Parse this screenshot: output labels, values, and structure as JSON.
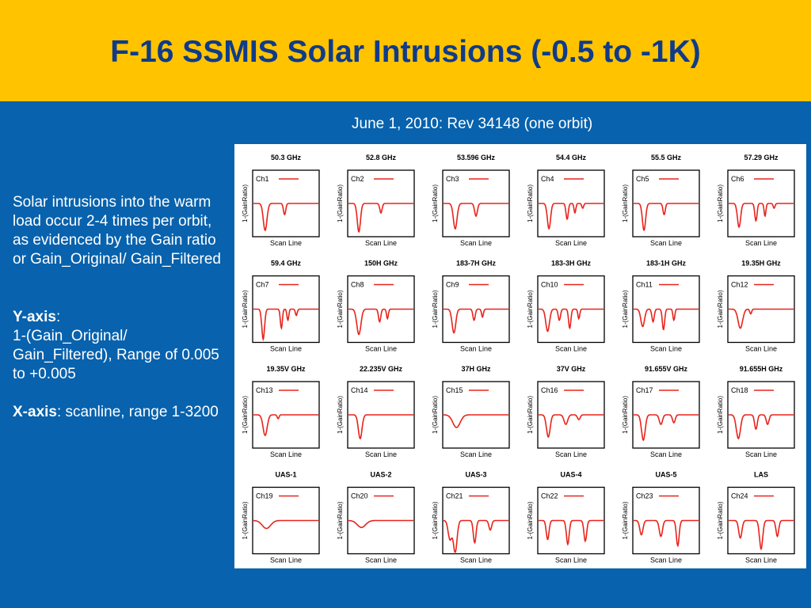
{
  "slide": {
    "title": "F-16 SSMIS Solar Intrusions (-0.5 to -1K)",
    "subtitle": "June 1, 2010: Rev 34148 (one orbit)",
    "description": "Solar intrusions into the warm load occur 2-4 times per orbit, as evidenced by the Gain ratio or Gain_Original/ Gain_Filtered",
    "y_axis": {
      "label": "Y-axis",
      "separator": ":",
      "text": "1-(Gain_Original/ Gain_Filtered), Range of 0.005 to +0.005"
    },
    "x_axis": {
      "label": "X-axis",
      "separator": ":",
      "text": "  scanline, range 1-3200"
    }
  },
  "colors": {
    "header_bg": "#ffc300",
    "title": "#0f3b8a",
    "slide_bg": "#0862ad",
    "series_line": "#e8241c"
  },
  "chart_data": {
    "type": "line",
    "xlabel": "Scan Line",
    "ylabel": "1-(GainRatio)",
    "xlim": [
      1,
      3200
    ],
    "ylim": [
      -0.005,
      0.005
    ],
    "panels": [
      {
        "title": "50.3 GHz",
        "legend": "Ch1",
        "dips": [
          [
            0.18,
            0.85,
            0.04
          ],
          [
            0.48,
            0.35,
            0.025
          ]
        ]
      },
      {
        "title": "52.8 GHz",
        "legend": "Ch2",
        "dips": [
          [
            0.16,
            0.9,
            0.035
          ],
          [
            0.5,
            0.3,
            0.025
          ]
        ]
      },
      {
        "title": "53.596 GHz",
        "legend": "Ch3",
        "dips": [
          [
            0.18,
            0.8,
            0.04
          ],
          [
            0.5,
            0.4,
            0.03
          ]
        ]
      },
      {
        "title": "54.4 GHz",
        "legend": "Ch4",
        "dips": [
          [
            0.16,
            0.8,
            0.035
          ],
          [
            0.44,
            0.5,
            0.025
          ],
          [
            0.56,
            0.3,
            0.02
          ],
          [
            0.68,
            0.15,
            0.02
          ]
        ]
      },
      {
        "title": "55.5 GHz",
        "legend": "Ch5",
        "dips": [
          [
            0.16,
            0.85,
            0.035
          ],
          [
            0.47,
            0.35,
            0.025
          ]
        ]
      },
      {
        "title": "57.29 GHz",
        "legend": "Ch6",
        "dips": [
          [
            0.16,
            0.75,
            0.035
          ],
          [
            0.42,
            0.55,
            0.025
          ],
          [
            0.56,
            0.4,
            0.02
          ],
          [
            0.7,
            0.15,
            0.02
          ]
        ]
      },
      {
        "title": "59.4 GHz",
        "legend": "Ch7",
        "dips": [
          [
            0.15,
            0.95,
            0.03
          ],
          [
            0.43,
            0.6,
            0.022
          ],
          [
            0.53,
            0.35,
            0.02
          ],
          [
            0.66,
            0.2,
            0.02
          ]
        ]
      },
      {
        "title": "150H GHz",
        "legend": "Ch8",
        "dips": [
          [
            0.16,
            0.8,
            0.045
          ],
          [
            0.48,
            0.4,
            0.025
          ],
          [
            0.6,
            0.3,
            0.02
          ]
        ]
      },
      {
        "title": "183-7H GHz",
        "legend": "Ch9",
        "dips": [
          [
            0.16,
            0.75,
            0.04
          ],
          [
            0.47,
            0.35,
            0.025
          ],
          [
            0.6,
            0.25,
            0.02
          ]
        ]
      },
      {
        "title": "183-3H GHz",
        "legend": "Ch10",
        "dips": [
          [
            0.14,
            0.7,
            0.04
          ],
          [
            0.32,
            0.35,
            0.025
          ],
          [
            0.48,
            0.6,
            0.025
          ],
          [
            0.62,
            0.3,
            0.02
          ]
        ]
      },
      {
        "title": "183-1H GHz",
        "legend": "Ch11",
        "dips": [
          [
            0.14,
            0.55,
            0.04
          ],
          [
            0.3,
            0.4,
            0.025
          ],
          [
            0.46,
            0.65,
            0.025
          ],
          [
            0.62,
            0.35,
            0.02
          ]
        ]
      },
      {
        "title": "19.35H GHz",
        "legend": "Ch12",
        "dips": [
          [
            0.18,
            0.6,
            0.05
          ],
          [
            0.34,
            0.15,
            0.02
          ]
        ]
      },
      {
        "title": "19.35V GHz",
        "legend": "Ch13",
        "dips": [
          [
            0.18,
            0.65,
            0.045
          ],
          [
            0.38,
            0.12,
            0.02
          ]
        ]
      },
      {
        "title": "22.235V GHz",
        "legend": "Ch14",
        "dips": [
          [
            0.18,
            0.75,
            0.04
          ]
        ]
      },
      {
        "title": "37H GHz",
        "legend": "Ch15",
        "dips": [
          [
            0.2,
            0.4,
            0.08
          ]
        ]
      },
      {
        "title": "37V GHz",
        "legend": "Ch16",
        "dips": [
          [
            0.15,
            0.7,
            0.04
          ],
          [
            0.42,
            0.3,
            0.04
          ],
          [
            0.62,
            0.15,
            0.03
          ]
        ]
      },
      {
        "title": "91.655V GHz",
        "legend": "Ch17",
        "dips": [
          [
            0.15,
            0.8,
            0.04
          ],
          [
            0.42,
            0.3,
            0.035
          ],
          [
            0.62,
            0.25,
            0.03
          ]
        ]
      },
      {
        "title": "91.655H GHz",
        "legend": "Ch18",
        "dips": [
          [
            0.15,
            0.75,
            0.045
          ],
          [
            0.42,
            0.45,
            0.03
          ],
          [
            0.6,
            0.3,
            0.03
          ]
        ]
      },
      {
        "title": "UAS-1",
        "legend": "Ch19",
        "dips": [
          [
            0.2,
            0.25,
            0.09
          ]
        ]
      },
      {
        "title": "UAS-2",
        "legend": "Ch20",
        "dips": [
          [
            0.2,
            0.22,
            0.09
          ]
        ]
      },
      {
        "title": "UAS-3",
        "legend": "Ch21",
        "dips": [
          [
            0.1,
            0.6,
            0.04
          ],
          [
            0.18,
            1.0,
            0.04
          ],
          [
            0.48,
            0.7,
            0.03
          ],
          [
            0.72,
            0.3,
            0.03
          ]
        ]
      },
      {
        "title": "UAS-4",
        "legend": "Ch22",
        "dips": [
          [
            0.14,
            0.6,
            0.03
          ],
          [
            0.45,
            0.75,
            0.03
          ],
          [
            0.72,
            0.65,
            0.03
          ]
        ]
      },
      {
        "title": "UAS-5",
        "legend": "Ch23",
        "dips": [
          [
            0.12,
            0.45,
            0.035
          ],
          [
            0.42,
            0.5,
            0.035
          ],
          [
            0.68,
            0.8,
            0.03
          ]
        ]
      },
      {
        "title": "LAS",
        "legend": "Ch24",
        "dips": [
          [
            0.18,
            0.55,
            0.035
          ],
          [
            0.5,
            0.9,
            0.035
          ],
          [
            0.75,
            0.5,
            0.03
          ]
        ]
      }
    ]
  }
}
